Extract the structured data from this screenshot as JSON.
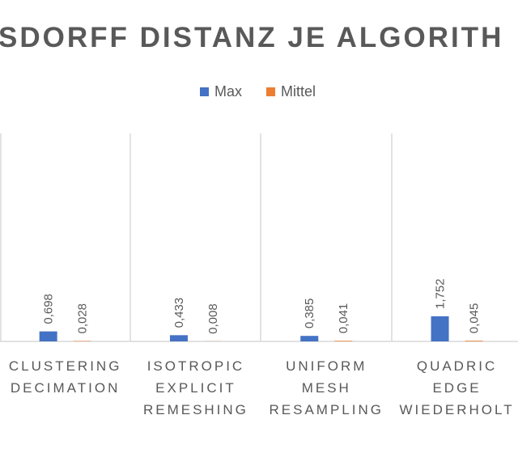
{
  "chart_data": {
    "type": "bar",
    "title": "SDORFF DISTANZ JE ALGORITH",
    "categories": [
      [
        "CLUSTERING",
        "DECIMATION"
      ],
      [
        "ISOTROPIC",
        "EXPLICIT",
        "REMESHING"
      ],
      [
        "UNIFORM",
        "MESH",
        "RESAMPLING"
      ],
      [
        "QUADRIC",
        "EDGE",
        "WIEDERHOLT"
      ]
    ],
    "series": [
      {
        "name": "Max",
        "color": "#4472c4",
        "values": [
          0.698,
          0.433,
          0.385,
          1.752
        ],
        "value_labels": [
          "0,698",
          "0,433",
          "0,385",
          "1,752"
        ]
      },
      {
        "name": "Mittel",
        "color": "#ed7d31",
        "values": [
          0.028,
          0.008,
          0.041,
          0.045
        ],
        "value_labels": [
          "0,028",
          "0,008",
          "0,041",
          "0,045"
        ]
      }
    ]
  }
}
